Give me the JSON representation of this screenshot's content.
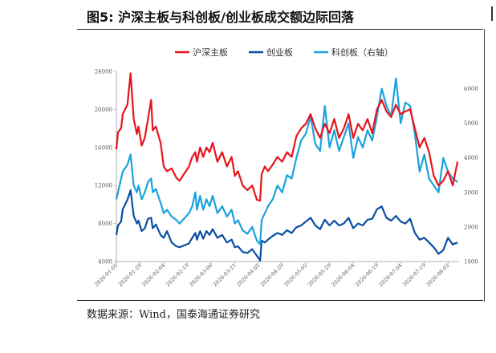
{
  "figure": {
    "title": "图5:  沪深主板与科创板/创业板成交额边际回落",
    "source": "数据来源：Wind，国泰海通证券研究"
  },
  "chart_data": {
    "type": "line",
    "title": "",
    "xlabel": "",
    "ylabel": "",
    "ylim_left": [
      4000,
      24000
    ],
    "ylim_right": [
      1000,
      6500
    ],
    "left_ticks": [
      4000,
      8000,
      12000,
      16000,
      20000,
      24000
    ],
    "right_ticks": [
      1000,
      2000,
      3000,
      4000,
      5000,
      6000
    ],
    "x_ticks": [
      "2026-01-05",
      "2026-01-20",
      "2026-02-04",
      "2026-02-19",
      "2026-03-06",
      "2026-03-21",
      "2026-04-05",
      "2026-04-20",
      "2026-05-05",
      "2026-05-20",
      "2026-06-04",
      "2026-06-19",
      "2026-07-04",
      "2026-07-19",
      "2026-08-03"
    ],
    "legend_position": "top",
    "grid": false,
    "series": [
      {
        "name": "沪深主板",
        "axis": "left",
        "color": "#e8141b",
        "x": [
          "2026-01-05",
          "2026-01-06",
          "2026-01-08",
          "2026-01-09",
          "2026-01-12",
          "2026-01-14",
          "2026-01-16",
          "2026-01-18",
          "2026-01-19",
          "2026-01-21",
          "2026-01-23",
          "2026-01-25",
          "2026-01-27",
          "2026-01-28",
          "2026-01-30",
          "2026-02-02",
          "2026-02-04",
          "2026-02-06",
          "2026-02-09",
          "2026-02-12",
          "2026-02-14",
          "2026-02-20",
          "2026-02-22",
          "2026-02-24",
          "2026-02-25",
          "2026-02-27",
          "2026-03-01",
          "2026-03-03",
          "2026-03-05",
          "2026-03-07",
          "2026-03-10",
          "2026-03-13",
          "2026-03-16",
          "2026-03-19",
          "2026-03-21",
          "2026-03-23",
          "2026-03-26",
          "2026-03-29",
          "2026-04-01",
          "2026-04-04",
          "2026-04-06",
          "2026-04-07",
          "2026-04-09",
          "2026-04-11",
          "2026-04-14",
          "2026-04-17",
          "2026-04-20",
          "2026-04-23",
          "2026-04-26",
          "2026-04-29",
          "2026-05-02",
          "2026-05-05",
          "2026-05-08",
          "2026-05-11",
          "2026-05-14",
          "2026-05-17",
          "2026-05-20",
          "2026-05-23",
          "2026-05-26",
          "2026-05-29",
          "2026-06-01",
          "2026-06-04",
          "2026-06-07",
          "2026-06-10",
          "2026-06-13",
          "2026-06-16",
          "2026-06-19",
          "2026-06-22",
          "2026-06-25",
          "2026-06-28",
          "2026-07-01",
          "2026-07-04",
          "2026-07-07",
          "2026-07-10",
          "2026-07-13",
          "2026-07-16",
          "2026-07-19",
          "2026-07-22",
          "2026-07-25",
          "2026-07-28",
          "2026-07-31",
          "2026-08-03",
          "2026-08-06",
          "2026-08-09"
        ],
        "y": [
          15800,
          17600,
          18000,
          19500,
          20500,
          23800,
          19000,
          17400,
          18200,
          16200,
          17000,
          19000,
          21000,
          17800,
          18200,
          16500,
          14000,
          13500,
          13800,
          12800,
          12500,
          14000,
          15000,
          15500,
          14500,
          16000,
          15000,
          16000,
          15500,
          16500,
          14500,
          15500,
          14000,
          15000,
          13000,
          13500,
          12000,
          11500,
          12000,
          10500,
          10400,
          13200,
          14000,
          13500,
          14200,
          15000,
          14500,
          15500,
          15000,
          17200,
          18000,
          18500,
          19500,
          18000,
          17000,
          18500,
          17500,
          19000,
          17000,
          18000,
          19500,
          17000,
          18500,
          17800,
          19000,
          17500,
          20000,
          21000,
          19800,
          19200,
          20500,
          19500,
          19800,
          20000,
          18000,
          16000,
          17000,
          15500,
          13000,
          12000,
          12500,
          13500,
          12000,
          14500
        ]
      },
      {
        "name": "创业板",
        "axis": "left",
        "color": "#0a4ea3",
        "x": [
          "2026-01-05",
          "2026-01-06",
          "2026-01-08",
          "2026-01-09",
          "2026-01-12",
          "2026-01-14",
          "2026-01-16",
          "2026-01-18",
          "2026-01-19",
          "2026-01-21",
          "2026-01-23",
          "2026-01-25",
          "2026-01-27",
          "2026-01-28",
          "2026-01-30",
          "2026-02-02",
          "2026-02-04",
          "2026-02-06",
          "2026-02-09",
          "2026-02-12",
          "2026-02-14",
          "2026-02-20",
          "2026-02-22",
          "2026-02-24",
          "2026-02-25",
          "2026-02-27",
          "2026-03-01",
          "2026-03-03",
          "2026-03-05",
          "2026-03-07",
          "2026-03-10",
          "2026-03-13",
          "2026-03-16",
          "2026-03-19",
          "2026-03-21",
          "2026-03-23",
          "2026-03-26",
          "2026-03-29",
          "2026-04-01",
          "2026-04-04",
          "2026-04-06",
          "2026-04-07",
          "2026-04-09",
          "2026-04-11",
          "2026-04-14",
          "2026-04-17",
          "2026-04-20",
          "2026-04-23",
          "2026-04-26",
          "2026-04-29",
          "2026-05-02",
          "2026-05-05",
          "2026-05-08",
          "2026-05-11",
          "2026-05-14",
          "2026-05-17",
          "2026-05-20",
          "2026-05-23",
          "2026-05-26",
          "2026-05-29",
          "2026-06-01",
          "2026-06-04",
          "2026-06-07",
          "2026-06-10",
          "2026-06-13",
          "2026-06-16",
          "2026-06-19",
          "2026-06-22",
          "2026-06-25",
          "2026-06-28",
          "2026-07-01",
          "2026-07-04",
          "2026-07-07",
          "2026-07-10",
          "2026-07-13",
          "2026-07-16",
          "2026-07-19",
          "2026-07-22",
          "2026-07-25",
          "2026-07-28",
          "2026-07-31",
          "2026-08-03",
          "2026-08-06",
          "2026-08-09"
        ],
        "y": [
          6800,
          7800,
          8200,
          9500,
          10500,
          11500,
          8800,
          8000,
          8300,
          7200,
          7500,
          8500,
          8600,
          7500,
          7900,
          6800,
          6500,
          7200,
          6000,
          5600,
          5500,
          5900,
          6500,
          7000,
          6300,
          7200,
          6400,
          7200,
          6800,
          7400,
          6500,
          6800,
          6000,
          6300,
          5500,
          5600,
          5000,
          4900,
          5300,
          4600,
          4100,
          6200,
          6000,
          6300,
          6700,
          7000,
          6800,
          7300,
          7000,
          7600,
          7800,
          8200,
          8600,
          7800,
          7400,
          8400,
          7800,
          8300,
          7800,
          8000,
          8600,
          7500,
          8000,
          7800,
          8400,
          8500,
          9500,
          9800,
          8600,
          8300,
          8800,
          8200,
          8000,
          8500,
          7000,
          6300,
          6500,
          6000,
          5500,
          4800,
          5200,
          6500,
          5800,
          6000
        ]
      },
      {
        "name": "科创板（右轴）",
        "axis": "right",
        "color": "#19a2dd",
        "x": [
          "2026-01-05",
          "2026-01-06",
          "2026-01-08",
          "2026-01-09",
          "2026-01-12",
          "2026-01-14",
          "2026-01-16",
          "2026-01-18",
          "2026-01-19",
          "2026-01-21",
          "2026-01-23",
          "2026-01-25",
          "2026-01-27",
          "2026-01-28",
          "2026-01-30",
          "2026-02-02",
          "2026-02-04",
          "2026-02-06",
          "2026-02-09",
          "2026-02-12",
          "2026-02-14",
          "2026-02-20",
          "2026-02-22",
          "2026-02-24",
          "2026-02-25",
          "2026-02-27",
          "2026-03-01",
          "2026-03-03",
          "2026-03-05",
          "2026-03-07",
          "2026-03-10",
          "2026-03-13",
          "2026-03-16",
          "2026-03-19",
          "2026-03-21",
          "2026-03-23",
          "2026-03-26",
          "2026-03-29",
          "2026-04-01",
          "2026-04-04",
          "2026-04-06",
          "2026-04-07",
          "2026-04-09",
          "2026-04-11",
          "2026-04-14",
          "2026-04-17",
          "2026-04-20",
          "2026-04-23",
          "2026-04-26",
          "2026-04-29",
          "2026-05-02",
          "2026-05-05",
          "2026-05-08",
          "2026-05-11",
          "2026-05-14",
          "2026-05-17",
          "2026-05-20",
          "2026-05-23",
          "2026-05-26",
          "2026-05-29",
          "2026-06-01",
          "2026-06-04",
          "2026-06-07",
          "2026-06-10",
          "2026-06-13",
          "2026-06-16",
          "2026-06-19",
          "2026-06-22",
          "2026-06-25",
          "2026-06-28",
          "2026-07-01",
          "2026-07-04",
          "2026-07-07",
          "2026-07-10",
          "2026-07-13",
          "2026-07-16",
          "2026-07-19",
          "2026-07-22",
          "2026-07-25",
          "2026-07-28",
          "2026-07-31",
          "2026-08-03",
          "2026-08-06",
          "2026-08-09"
        ],
        "y": [
          2800,
          3000,
          3400,
          3600,
          3800,
          4100,
          3200,
          3000,
          3200,
          2800,
          3000,
          3300,
          3400,
          3000,
          3100,
          2700,
          2400,
          2500,
          2300,
          2200,
          2100,
          2400,
          2600,
          3000,
          2500,
          2900,
          2500,
          2800,
          2600,
          2900,
          2400,
          2600,
          2300,
          2500,
          2100,
          2200,
          1900,
          1800,
          2000,
          1600,
          1500,
          2200,
          2400,
          2600,
          2800,
          3200,
          3000,
          3500,
          3400,
          4000,
          4500,
          4700,
          5200,
          4400,
          4200,
          5500,
          4300,
          4800,
          4200,
          4600,
          5000,
          4000,
          4600,
          4300,
          4800,
          4500,
          5200,
          6000,
          5500,
          5200,
          6300,
          5000,
          5600,
          5500,
          4700,
          3600,
          4100,
          3400,
          3200,
          3000,
          4000,
          3600,
          3400,
          3300
        ]
      }
    ]
  }
}
